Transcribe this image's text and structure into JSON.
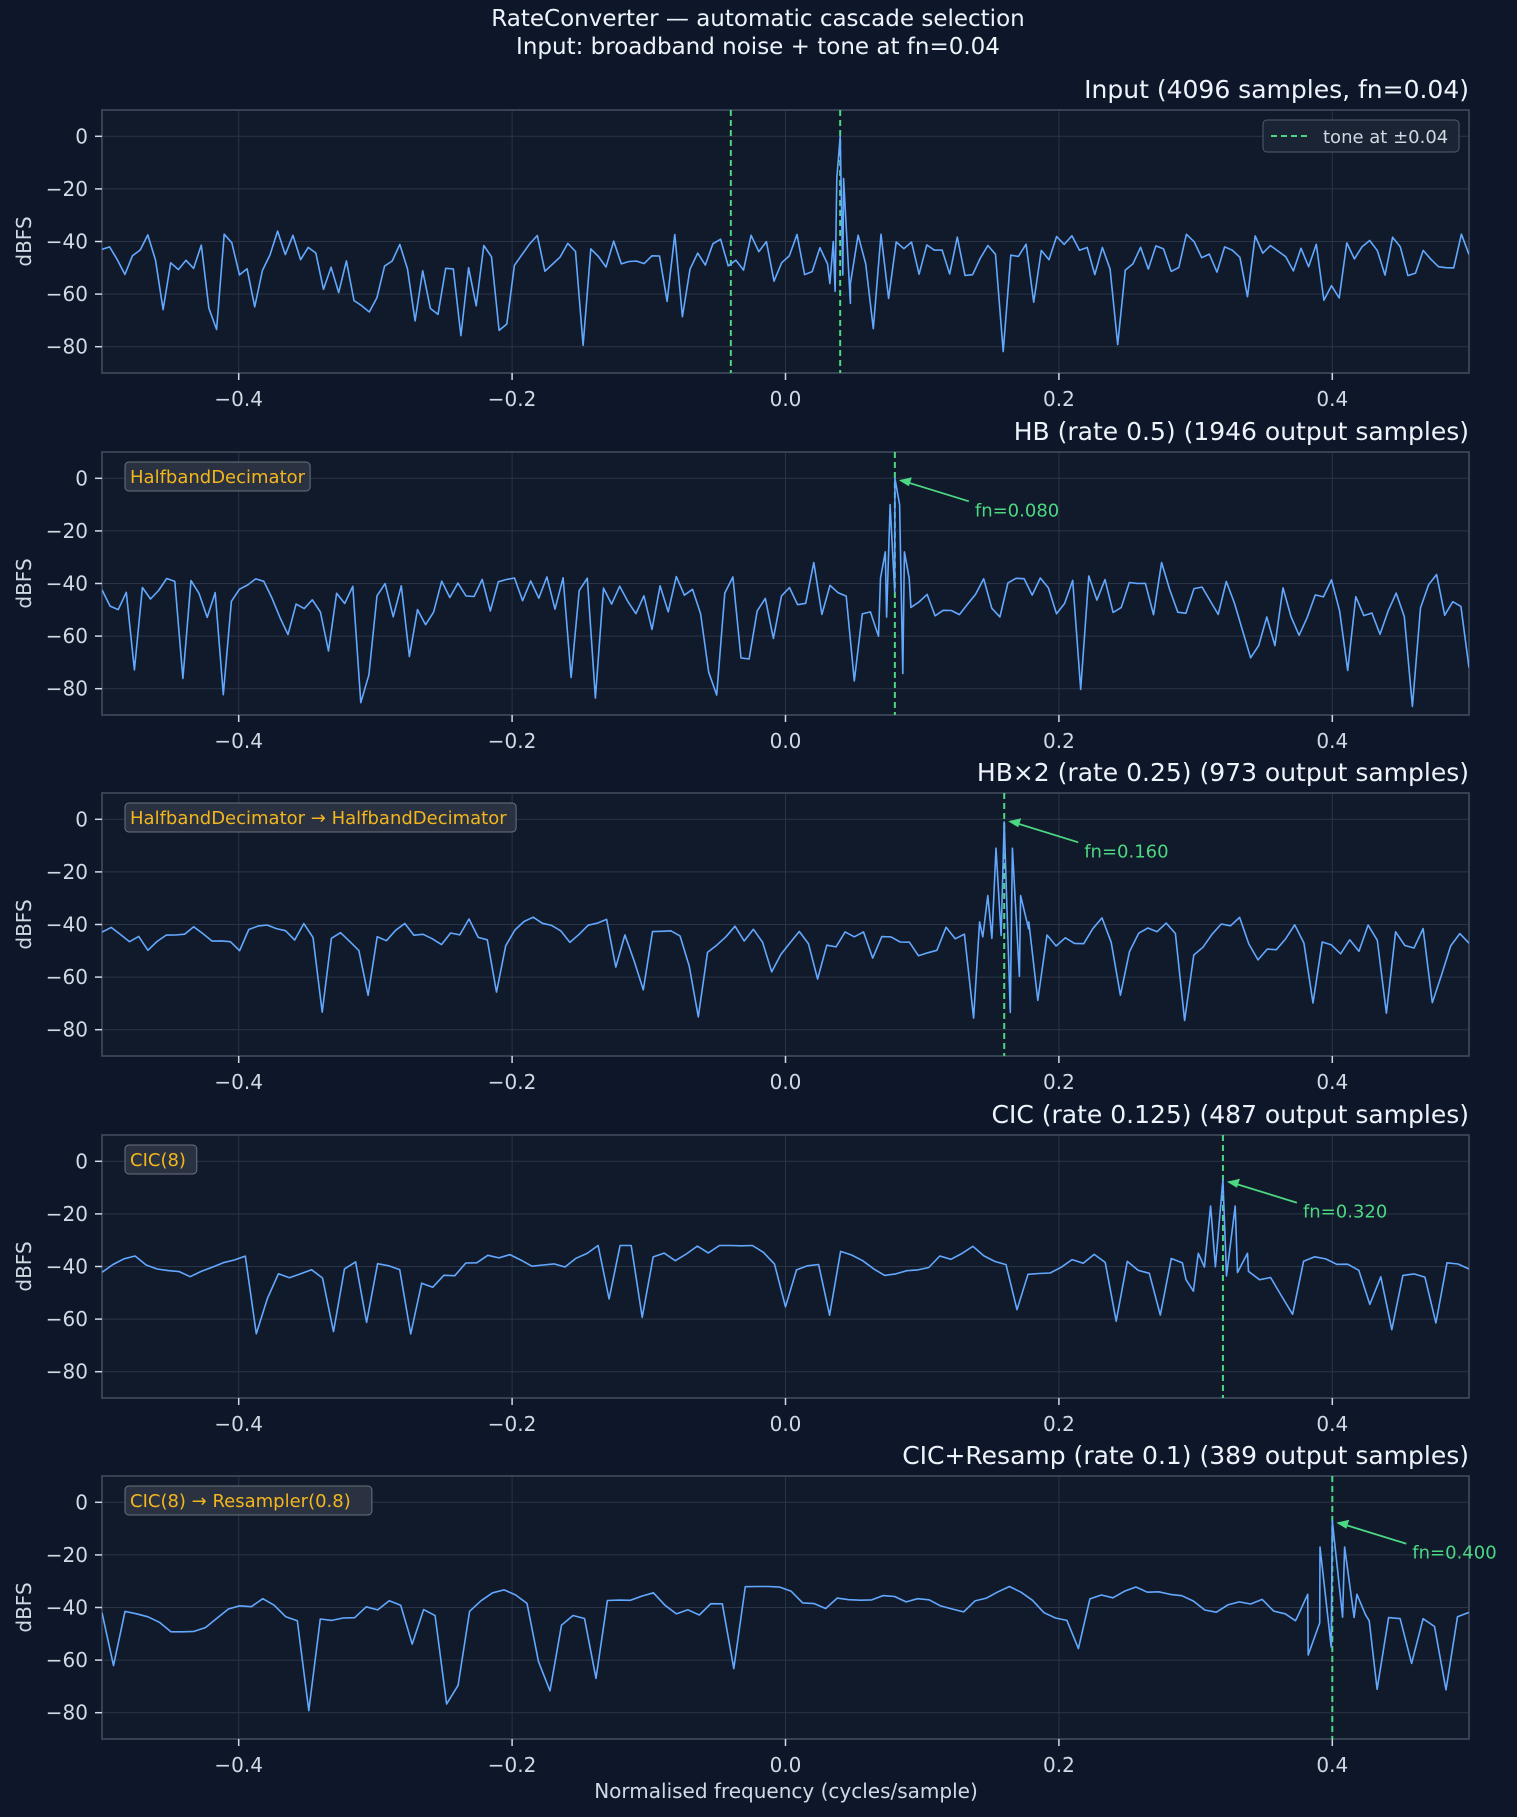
{
  "figure": {
    "title_line1": "RateConverter — automatic cascade selection",
    "title_line2": "Input: broadband noise + tone at fn=0.04",
    "xlabel": "Normalised frequency (cycles/sample)"
  },
  "colors": {
    "figure_background": "#0e1729",
    "axes_background": "#111a2a",
    "grid": "#2a3446",
    "axes_edge": "#3d4759",
    "spectrum": "#62a8ff",
    "tone_marker": "#4cd782",
    "cascade_text": "#f3b71d",
    "text": "#eef3fb",
    "tick_text": "#d2d9e5"
  },
  "chart_data": [
    {
      "type": "line",
      "title": "Input  (4096 samples, fn=0.04)",
      "xlabel": "",
      "ylabel": "dBFS",
      "xlim": [
        -0.5,
        0.5
      ],
      "ylim": [
        -90,
        10
      ],
      "xticks": [
        -0.4,
        -0.2,
        0.0,
        0.2,
        0.4
      ],
      "xtick_labels": [
        "−0.4",
        "−0.2",
        "0.0",
        "0.2",
        "0.4"
      ],
      "yticks": [
        0,
        -20,
        -40,
        -60,
        -80
      ],
      "ytick_labels": [
        "0",
        "−20",
        "−40",
        "−60",
        "−80"
      ],
      "grid": true,
      "legend": {
        "position": "top-right",
        "entries": [
          "tone at ±0.04"
        ]
      },
      "cascade": "",
      "tone_lines": [
        -0.04,
        0.04
      ],
      "annotation": null,
      "series": [
        {
          "values_profile": {
            "baseline_dbfs": -45,
            "variation": "broadband",
            "points": 180
          },
          "peaks": [
            {
              "x": 0.04,
              "y": 0
            }
          ]
        }
      ]
    },
    {
      "type": "line",
      "title": "HB (rate 0.5)  (1946 output samples)",
      "xlabel": "",
      "ylabel": "dBFS",
      "xlim": [
        -0.5,
        0.5
      ],
      "ylim": [
        -90,
        10
      ],
      "xticks": [
        -0.4,
        -0.2,
        0.0,
        0.2,
        0.4
      ],
      "xtick_labels": [
        "−0.4",
        "−0.2",
        "0.0",
        "0.2",
        "0.4"
      ],
      "yticks": [
        0,
        -20,
        -40,
        -60,
        -80
      ],
      "ytick_labels": [
        "0",
        "−20",
        "−40",
        "−60",
        "−80"
      ],
      "grid": true,
      "legend": null,
      "cascade": "HalfbandDecimator",
      "tone_lines": [
        0.08
      ],
      "annotation": {
        "text": "fn=0.080",
        "x": 0.08,
        "y": 0
      },
      "series": [
        {
          "values_profile": {
            "baseline_dbfs": -45,
            "variation": "broadband",
            "points": 170
          },
          "peaks": [
            {
              "x": 0.08,
              "y": 0
            }
          ]
        }
      ]
    },
    {
      "type": "line",
      "title": "HB×2 (rate 0.25)  (973 output samples)",
      "xlabel": "",
      "ylabel": "dBFS",
      "xlim": [
        -0.5,
        0.5
      ],
      "ylim": [
        -90,
        10
      ],
      "xticks": [
        -0.4,
        -0.2,
        0.0,
        0.2,
        0.4
      ],
      "xtick_labels": [
        "−0.4",
        "−0.2",
        "0.0",
        "0.2",
        "0.4"
      ],
      "yticks": [
        0,
        -20,
        -40,
        -60,
        -80
      ],
      "ytick_labels": [
        "0",
        "−20",
        "−40",
        "−60",
        "−80"
      ],
      "grid": true,
      "legend": null,
      "cascade": "HalfbandDecimator → HalfbandDecimator",
      "tone_lines": [
        0.16
      ],
      "annotation": {
        "text": "fn=0.160",
        "x": 0.16,
        "y": 0
      },
      "series": [
        {
          "values_profile": {
            "baseline_dbfs": -45,
            "variation": "moderate",
            "points": 150
          },
          "peaks": [
            {
              "x": 0.16,
              "y": -1
            }
          ]
        }
      ]
    },
    {
      "type": "line",
      "title": "CIC (rate 0.125)  (487 output samples)",
      "xlabel": "",
      "ylabel": "dBFS",
      "xlim": [
        -0.5,
        0.5
      ],
      "ylim": [
        -90,
        10
      ],
      "xticks": [
        -0.4,
        -0.2,
        0.0,
        0.2,
        0.4
      ],
      "xtick_labels": [
        "−0.4",
        "−0.2",
        "0.0",
        "0.2",
        "0.4"
      ],
      "yticks": [
        0,
        -20,
        -40,
        -60,
        -80
      ],
      "ytick_labels": [
        "0",
        "−20",
        "−40",
        "−60",
        "−80"
      ],
      "grid": true,
      "legend": null,
      "cascade": "CIC(8)",
      "tone_lines": [
        0.32
      ],
      "annotation": {
        "text": "fn=0.320",
        "x": 0.32,
        "y": -7
      },
      "series": [
        {
          "values_profile": {
            "baseline_dbfs": -45,
            "variation": "smooth",
            "points": 125
          },
          "peaks": [
            {
              "x": 0.32,
              "y": -7
            }
          ]
        }
      ]
    },
    {
      "type": "line",
      "title": "CIC+Resamp (rate 0.1)  (389 output samples)",
      "xlabel": "Normalised frequency (cycles/sample)",
      "ylabel": "dBFS",
      "xlim": [
        -0.5,
        0.5
      ],
      "ylim": [
        -90,
        10
      ],
      "xticks": [
        -0.4,
        -0.2,
        0.0,
        0.2,
        0.4
      ],
      "xtick_labels": [
        "−0.4",
        "−0.2",
        "0.0",
        "0.2",
        "0.4"
      ],
      "yticks": [
        0,
        -20,
        -40,
        -60,
        -80
      ],
      "ytick_labels": [
        "0",
        "−20",
        "−40",
        "−60",
        "−80"
      ],
      "grid": true,
      "legend": null,
      "cascade": "CIC(8) → Resampler(0.8)",
      "tone_lines": [
        0.4
      ],
      "annotation": {
        "text": "fn=0.400",
        "x": 0.4,
        "y": -7
      },
      "series": [
        {
          "values_profile": {
            "baseline_dbfs": -45,
            "variation": "smooth",
            "points": 120
          },
          "peaks": [
            {
              "x": 0.4,
              "y": -7
            }
          ]
        }
      ]
    }
  ]
}
